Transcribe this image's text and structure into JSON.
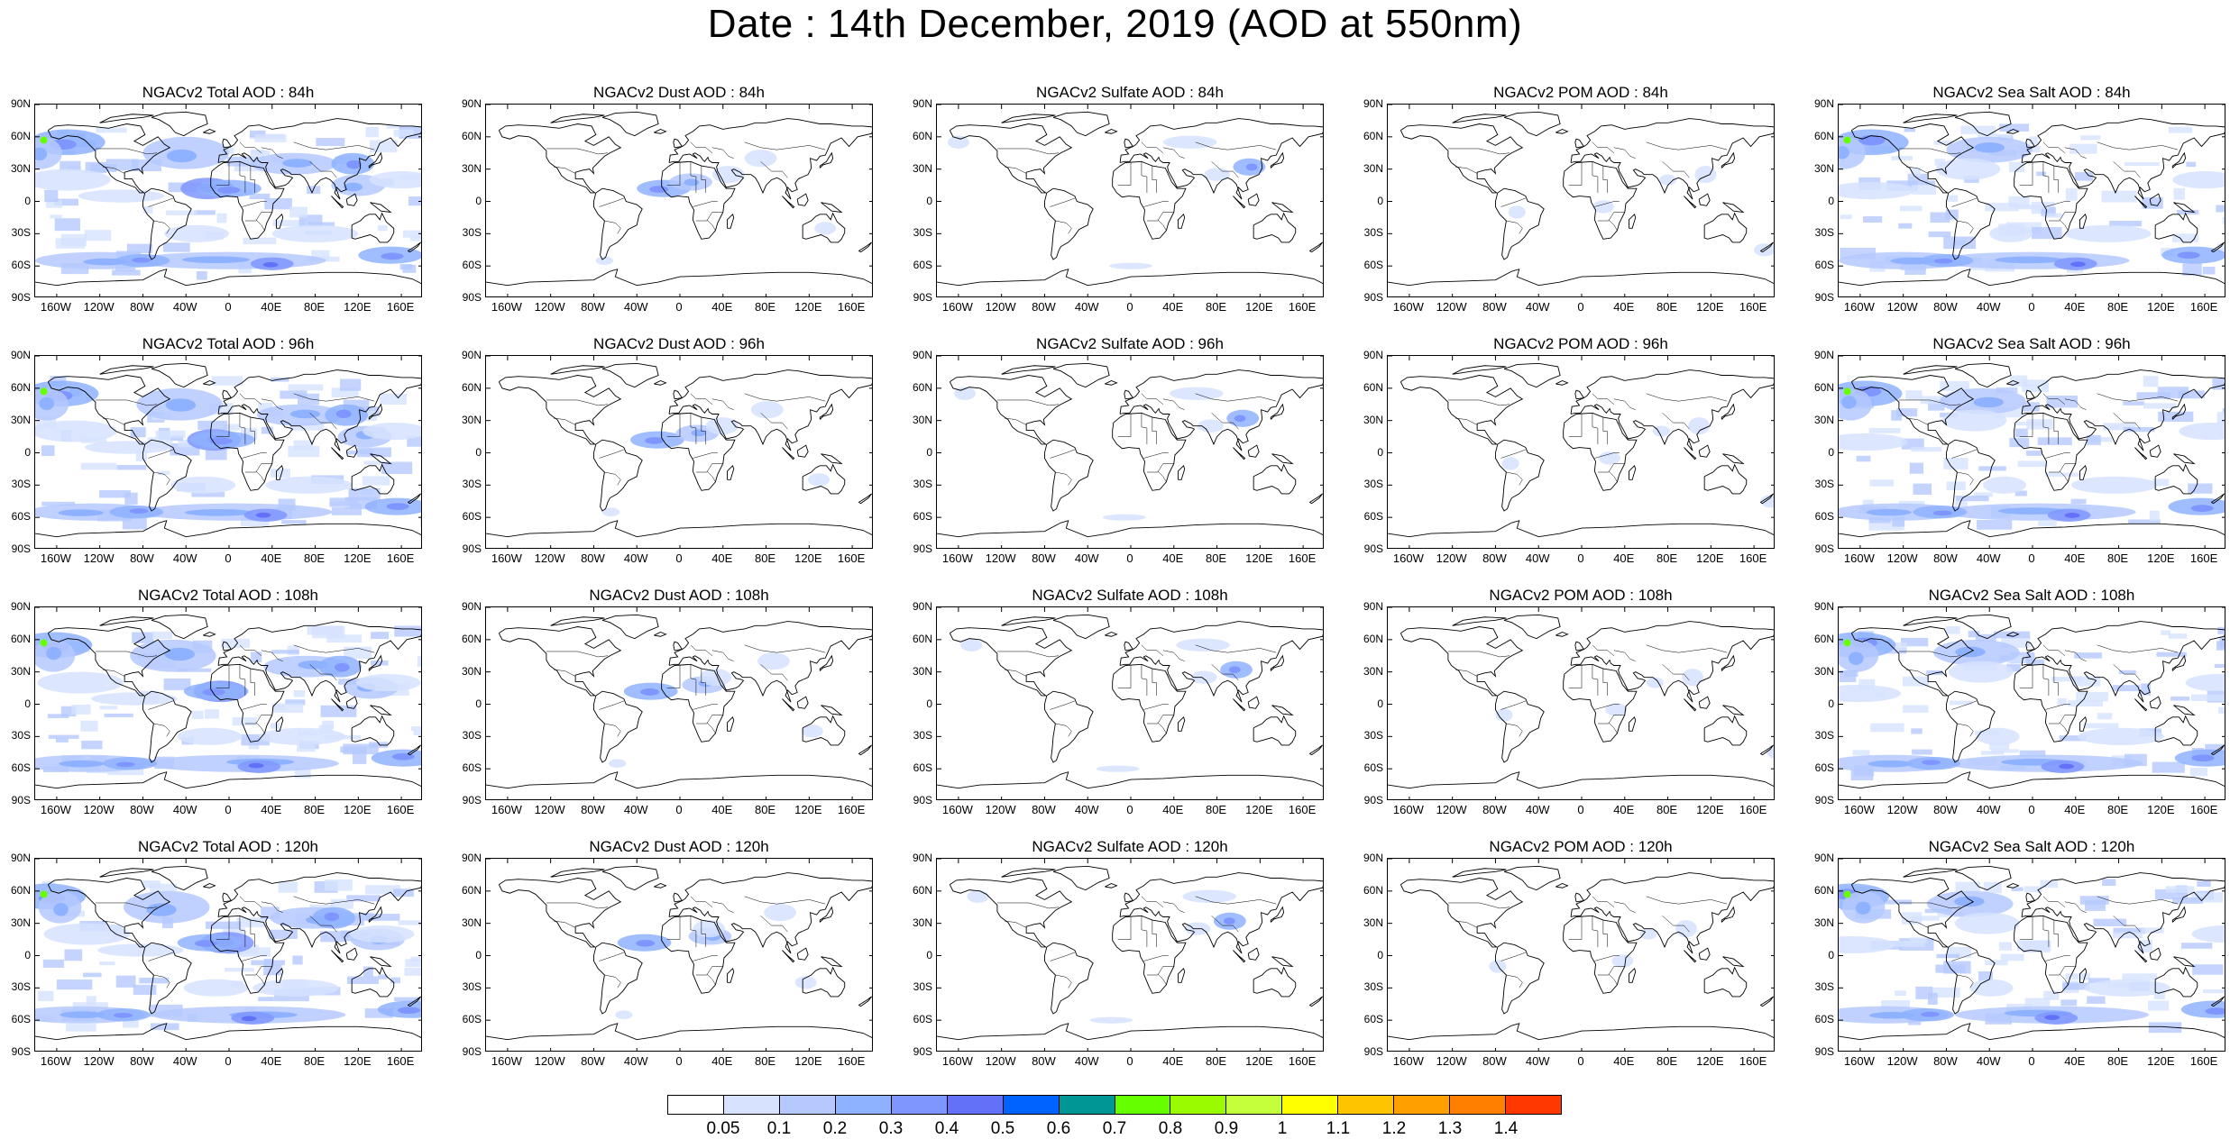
{
  "title": "Date : 14th December, 2019 (AOD at 550nm)",
  "y_ticks": [
    "90N",
    "60N",
    "30N",
    "0",
    "30S",
    "60S",
    "90S"
  ],
  "x_ticks": [
    "160W",
    "120W",
    "80W",
    "40W",
    "0",
    "40E",
    "80E",
    "120E",
    "160E"
  ],
  "x_tick_values": [
    -160,
    -120,
    -80,
    -40,
    0,
    40,
    80,
    120,
    160
  ],
  "y_tick_values": [
    90,
    60,
    30,
    0,
    -30,
    -60,
    -90
  ],
  "panels": [
    {
      "title": "NGACv2 Total AOD : 84h",
      "species": "total"
    },
    {
      "title": "NGACv2 Dust AOD : 84h",
      "species": "dust"
    },
    {
      "title": "NGACv2 Sulfate AOD : 84h",
      "species": "sulfate"
    },
    {
      "title": "NGACv2 POM AOD : 84h",
      "species": "pom"
    },
    {
      "title": "NGACv2 Sea Salt AOD : 84h",
      "species": "seasalt"
    },
    {
      "title": "NGACv2 Total AOD : 96h",
      "species": "total"
    },
    {
      "title": "NGACv2 Dust AOD : 96h",
      "species": "dust"
    },
    {
      "title": "NGACv2 Sulfate AOD : 96h",
      "species": "sulfate"
    },
    {
      "title": "NGACv2 POM AOD : 96h",
      "species": "pom"
    },
    {
      "title": "NGACv2 Sea Salt AOD : 96h",
      "species": "seasalt"
    },
    {
      "title": "NGACv2 Total AOD : 108h",
      "species": "total"
    },
    {
      "title": "NGACv2 Dust AOD : 108h",
      "species": "dust"
    },
    {
      "title": "NGACv2 Sulfate AOD : 108h",
      "species": "sulfate"
    },
    {
      "title": "NGACv2 POM AOD : 108h",
      "species": "pom"
    },
    {
      "title": "NGACv2 Sea Salt AOD : 108h",
      "species": "seasalt"
    },
    {
      "title": "NGACv2 Total AOD : 120h",
      "species": "total"
    },
    {
      "title": "NGACv2 Dust AOD : 120h",
      "species": "dust"
    },
    {
      "title": "NGACv2 Sulfate AOD : 120h",
      "species": "sulfate"
    },
    {
      "title": "NGACv2 POM AOD : 120h",
      "species": "pom"
    },
    {
      "title": "NGACv2 Sea Salt  AOD : 120h",
      "species": "seasalt"
    }
  ],
  "colorbar": {
    "colors": [
      "#ffffff",
      "#d6e2ff",
      "#b5c9ff",
      "#8eb2ff",
      "#7f96ff",
      "#6370f8",
      "#0063ff",
      "#009696",
      "#66ff00",
      "#9afa00",
      "#c3ff3a",
      "#ffff00",
      "#ffc400",
      "#ffa000",
      "#ff8000",
      "#ff3700"
    ],
    "labels": [
      "0.05",
      "0.1",
      "0.2",
      "0.3",
      "0.4",
      "0.5",
      "0.6",
      "0.7",
      "0.8",
      "0.9",
      "1",
      "1.1",
      "1.2",
      "1.3",
      "1.4"
    ]
  }
}
